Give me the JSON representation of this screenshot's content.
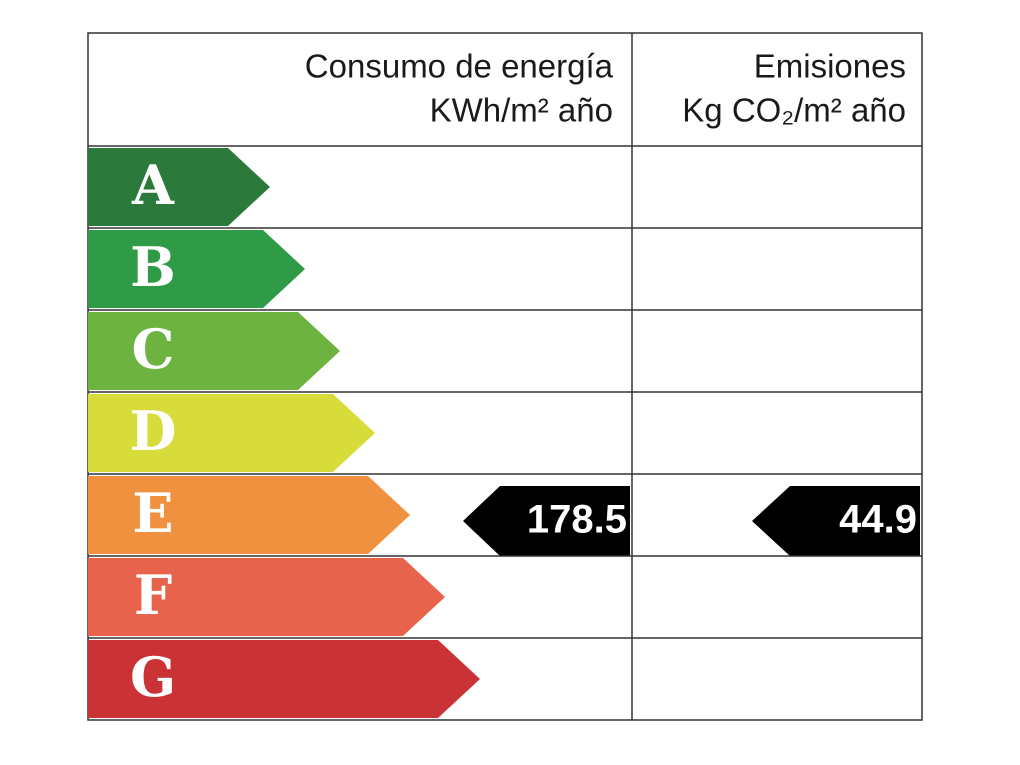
{
  "header": {
    "energy_title": "Consumo de energía",
    "energy_unit": "KWh/m² año",
    "emission_title": "Emisiones",
    "emission_unit": "Kg CO₂/m² año"
  },
  "grades": [
    {
      "label": "A",
      "color": "#2b7a3c"
    },
    {
      "label": "B",
      "color": "#2f9b47"
    },
    {
      "label": "C",
      "color": "#6cb33f"
    },
    {
      "label": "D",
      "color": "#d8dc3a"
    },
    {
      "label": "E",
      "color": "#f0913f"
    },
    {
      "label": "F",
      "color": "#e8634b"
    },
    {
      "label": "G",
      "color": "#cb3235"
    }
  ],
  "rating": "E",
  "energy_value": "178.5",
  "emission_value": "44.9"
}
